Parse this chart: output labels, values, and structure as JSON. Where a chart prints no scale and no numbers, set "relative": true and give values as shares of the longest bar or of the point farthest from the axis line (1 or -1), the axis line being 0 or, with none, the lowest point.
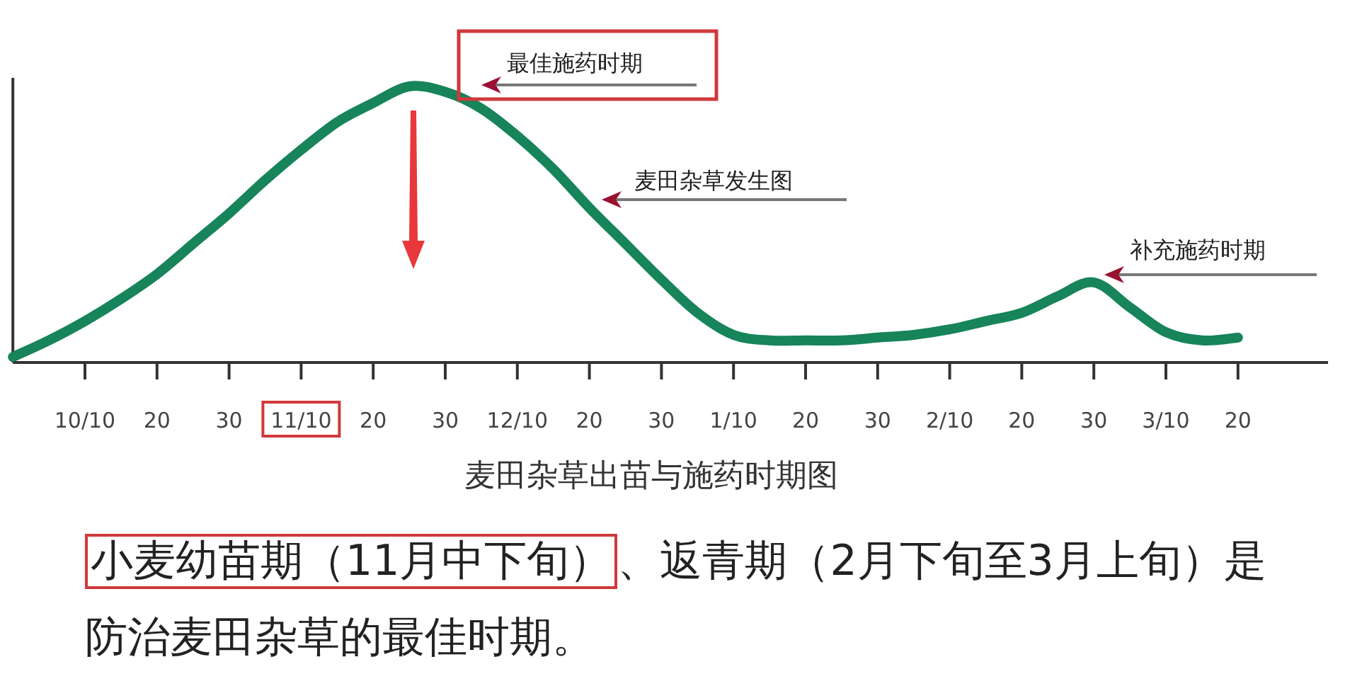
{
  "chart_data": {
    "type": "line",
    "relative": true,
    "xlabel": "麦田杂草出苗与施药时期图",
    "categories": [
      null,
      null,
      "10/10",
      null,
      "20",
      null,
      "30",
      null,
      "11/10",
      null,
      "20",
      null,
      "30",
      null,
      "12/10",
      null,
      "20",
      null,
      "30",
      null,
      "1/10",
      null,
      "20",
      null,
      "30",
      null,
      "2/10",
      null,
      "20",
      null,
      "30",
      null,
      "3/10",
      null,
      "20"
    ],
    "series": [
      {
        "color": "#17845a",
        "values": [
          0.02,
          0.08,
          0.15,
          0.23,
          0.32,
          0.43,
          0.54,
          0.66,
          0.77,
          0.87,
          0.94,
          1,
          0.98,
          0.92,
          0.82,
          0.7,
          0.56,
          0.43,
          0.3,
          0.18,
          0.1,
          0.08,
          0.08,
          0.08,
          0.09,
          0.1,
          0.12,
          0.15,
          0.18,
          0.24,
          0.29,
          0.2,
          0.11,
          0.08,
          0.09
        ]
      }
    ],
    "annotations": [
      "最佳施药时期",
      "麦田杂草发生图",
      "补充施药时期",
      "小麦幼苗期（11月中下旬）",
      "、返青期（2月下旬至3月上旬）是防治麦田杂草的最佳时期。"
    ]
  }
}
